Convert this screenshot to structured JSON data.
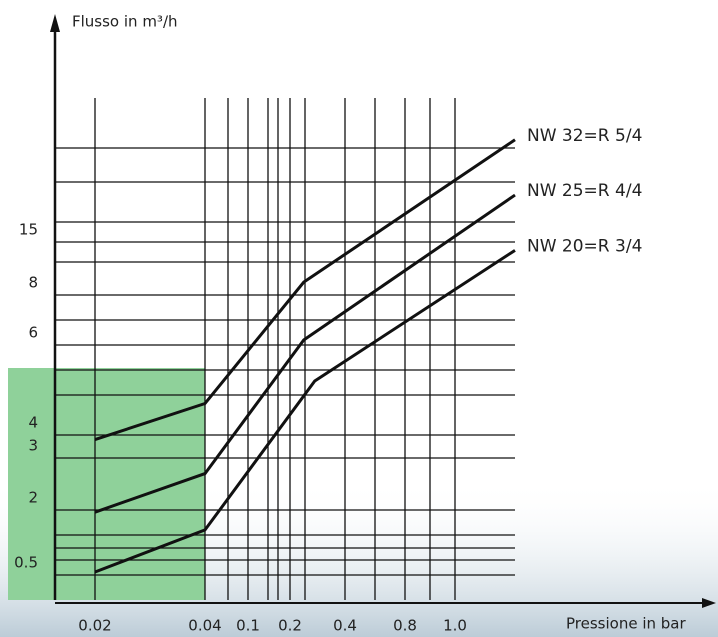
{
  "chart_data": {
    "type": "line",
    "y_label": "Flusso in m³/h",
    "x_label": "Pressione in bar",
    "xticks": [
      0.02,
      0.04,
      0.1,
      0.2,
      0.4,
      0.8,
      {
        "value": 1,
        "label": "1.0"
      }
    ],
    "yticks": [
      0.5,
      2,
      3,
      4,
      6,
      8,
      15
    ],
    "grid": true,
    "series": [
      {
        "name": "NW 32=R 5/4",
        "color": "#111111",
        "x": [
          0.02,
          0.04,
          0.25,
          1.24
        ],
        "values": [
          3.8,
          4.7,
          9.7,
          28.5
        ]
      },
      {
        "name": "NW 25=R 4/4",
        "color": "#111111",
        "x": [
          0.02,
          0.04,
          0.25,
          1.24
        ],
        "values": [
          1.95,
          2.7,
          6.2,
          21.2
        ]
      },
      {
        "name": "NW 20=R 3/4",
        "color": "#111111",
        "x": [
          0.02,
          0.04,
          0.29,
          1.24
        ],
        "values": [
          0.57,
          1.54,
          5.2,
          13.9
        ]
      }
    ]
  }
}
